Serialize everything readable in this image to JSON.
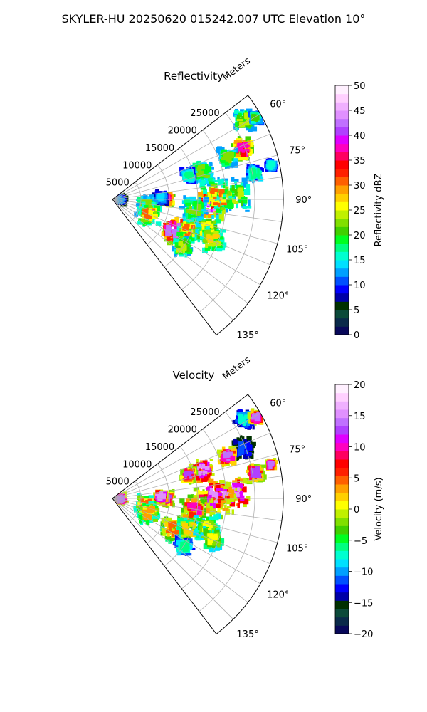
{
  "figure": {
    "title": "SKYLER-HU  20250620  015242.007 UTC Elevation 10°"
  },
  "chart_data": [
    {
      "type": "polar_sector",
      "title": "Reflectivity",
      "radial_label": "Meters",
      "radial_ticks": [
        5000,
        10000,
        15000,
        20000,
        25000
      ],
      "radial_range": [
        0,
        30000
      ],
      "angle_ticks": [
        "60°",
        "75°",
        "90°",
        "105°",
        "120°",
        "135°"
      ],
      "angle_range": [
        52.5,
        142.5
      ],
      "grid": true,
      "colorbar": {
        "label": "Reflectivity dBZ",
        "range": [
          0,
          50
        ],
        "ticks": [
          0,
          5,
          10,
          15,
          20,
          25,
          30,
          35,
          40,
          45,
          50
        ],
        "colors": [
          "#08085a",
          "#0a2a4a",
          "#0b4a3a",
          "#003000",
          "#0000a8",
          "#0000ff",
          "#0050ff",
          "#00a0ff",
          "#00e0ff",
          "#00ffd0",
          "#00ff80",
          "#00ff20",
          "#40d000",
          "#80e000",
          "#c0f000",
          "#ffff00",
          "#ffd000",
          "#ffa000",
          "#ff6000",
          "#ff2000",
          "#ff0000",
          "#ff0060",
          "#ff00c0",
          "#e000ff",
          "#b040ff",
          "#c070ff",
          "#e090ff",
          "#f0b0ff",
          "#ffd0ff",
          "#fff0ff"
        ]
      },
      "echo_cells": [
        {
          "az": 59,
          "range_m": 27000,
          "peak": 24,
          "radius_m": 1600
        },
        {
          "az": 60.5,
          "range_m": 29000,
          "peak": 20,
          "radius_m": 1000
        },
        {
          "az": 69,
          "range_m": 24500,
          "peak": 38,
          "radius_m": 1800
        },
        {
          "az": 70,
          "range_m": 21500,
          "peak": 22,
          "radius_m": 1400
        },
        {
          "az": 73,
          "range_m": 16500,
          "peak": 22,
          "radius_m": 1800
        },
        {
          "az": 73,
          "range_m": 14000,
          "peak": 18,
          "radius_m": 1100
        },
        {
          "az": 78,
          "range_m": 28500,
          "peak": 16,
          "radius_m": 700
        },
        {
          "az": 80,
          "range_m": 25500,
          "peak": 18,
          "radius_m": 1300
        },
        {
          "az": 88,
          "range_m": 21500,
          "peak": 24,
          "radius_m": 2600
        },
        {
          "az": 93,
          "range_m": 17000,
          "peak": 44,
          "radius_m": 2300
        },
        {
          "az": 89,
          "range_m": 18500,
          "peak": 30,
          "radius_m": 2700
        },
        {
          "az": 97,
          "range_m": 14500,
          "peak": 22,
          "radius_m": 2000
        },
        {
          "az": 90,
          "range_m": 9500,
          "peak": 38,
          "radius_m": 1200
        },
        {
          "az": 88,
          "range_m": 8500,
          "peak": 14,
          "radius_m": 1000
        },
        {
          "az": 101,
          "range_m": 6000,
          "peak": 22,
          "radius_m": 1600
        },
        {
          "az": 112,
          "range_m": 7000,
          "peak": 30,
          "radius_m": 1700
        },
        {
          "az": 117,
          "range_m": 12000,
          "peak": 42,
          "radius_m": 2000
        },
        {
          "az": 112,
          "range_m": 14500,
          "peak": 30,
          "radius_m": 1800
        },
        {
          "az": 107,
          "range_m": 17500,
          "peak": 26,
          "radius_m": 1900
        },
        {
          "az": 112,
          "range_m": 19000,
          "peak": 28,
          "radius_m": 1700
        },
        {
          "az": 124,
          "range_m": 15000,
          "peak": 24,
          "radius_m": 1500
        },
        {
          "az": 93,
          "range_m": 1500,
          "peak": 12,
          "radius_m": 800
        }
      ]
    },
    {
      "type": "polar_sector",
      "title": "Velocity",
      "radial_label": "Meters",
      "radial_ticks": [
        5000,
        10000,
        15000,
        20000,
        25000
      ],
      "radial_range": [
        0,
        30000
      ],
      "angle_ticks": [
        "60°",
        "75°",
        "90°",
        "105°",
        "120°",
        "135°"
      ],
      "angle_range": [
        52.5,
        142.5
      ],
      "grid": true,
      "colorbar": {
        "label": "Velocity (m/s)",
        "range": [
          -20,
          20
        ],
        "ticks": [
          -20,
          -15,
          -10,
          -5,
          0,
          5,
          10,
          15,
          20
        ],
        "colors": [
          "#08085a",
          "#0a2a4a",
          "#0b4a3a",
          "#003000",
          "#0000a8",
          "#0000ff",
          "#0050ff",
          "#00a0ff",
          "#00e0ff",
          "#00ffd0",
          "#00ff80",
          "#00ff20",
          "#40d000",
          "#80e000",
          "#c0f000",
          "#ffff00",
          "#ffd000",
          "#ffa000",
          "#ff6000",
          "#ff2000",
          "#ff0000",
          "#ff0060",
          "#ff00c0",
          "#e000ff",
          "#b040ff",
          "#c070ff",
          "#e090ff",
          "#f0b0ff",
          "#ffd0ff",
          "#fff0ff"
        ]
      },
      "echo_cells": [
        {
          "az": 59,
          "range_m": 27000,
          "peak": -8,
          "radius_m": 1600
        },
        {
          "az": 60.5,
          "range_m": 29000,
          "peak": 14,
          "radius_m": 1000
        },
        {
          "az": 69,
          "range_m": 24500,
          "peak": -12,
          "radius_m": 1800
        },
        {
          "az": 70,
          "range_m": 21500,
          "peak": 14,
          "radius_m": 1400
        },
        {
          "az": 73,
          "range_m": 16500,
          "peak": 15,
          "radius_m": 1800
        },
        {
          "az": 73,
          "range_m": 14000,
          "peak": 12,
          "radius_m": 1100
        },
        {
          "az": 78,
          "range_m": 28500,
          "peak": 14,
          "radius_m": 700
        },
        {
          "az": 80,
          "range_m": 25500,
          "peak": 13,
          "radius_m": 1300
        },
        {
          "az": 88,
          "range_m": 21500,
          "peak": 15,
          "radius_m": 2600
        },
        {
          "az": 93,
          "range_m": 17000,
          "peak": 12,
          "radius_m": 2300
        },
        {
          "az": 89,
          "range_m": 18500,
          "peak": 15,
          "radius_m": 2700
        },
        {
          "az": 97,
          "range_m": 14500,
          "peak": 10,
          "radius_m": 2000
        },
        {
          "az": 90,
          "range_m": 9500,
          "peak": 12,
          "radius_m": 1200
        },
        {
          "az": 88,
          "range_m": 8500,
          "peak": 15,
          "radius_m": 1000
        },
        {
          "az": 101,
          "range_m": 6000,
          "peak": 4,
          "radius_m": 1600
        },
        {
          "az": 112,
          "range_m": 7000,
          "peak": 3,
          "radius_m": 1700
        },
        {
          "az": 117,
          "range_m": 12000,
          "peak": 5,
          "radius_m": 2000
        },
        {
          "az": 112,
          "range_m": 14500,
          "peak": 2,
          "radius_m": 1800
        },
        {
          "az": 107,
          "range_m": 17500,
          "peak": 0,
          "radius_m": 1900
        },
        {
          "az": 112,
          "range_m": 19000,
          "peak": 1,
          "radius_m": 1700
        },
        {
          "az": 124,
          "range_m": 15000,
          "peak": -6,
          "radius_m": 1500
        },
        {
          "az": 93,
          "range_m": 1500,
          "peak": 14,
          "radius_m": 800
        }
      ]
    }
  ]
}
